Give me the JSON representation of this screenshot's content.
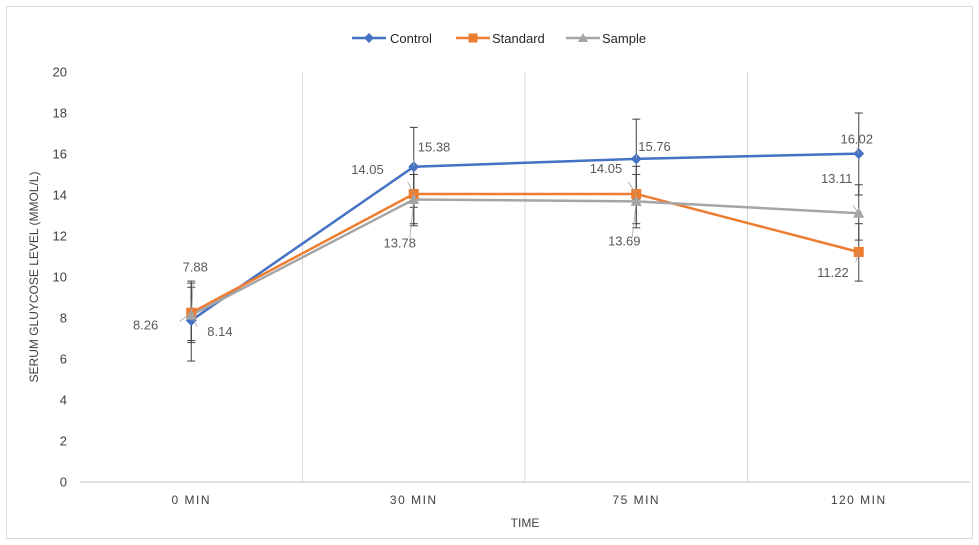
{
  "chart_data": {
    "type": "line",
    "categories": [
      "0 MIN",
      "30 MIN",
      "75 MIN",
      "120 MIN"
    ],
    "xlabel": "TIME",
    "ylabel": "SERUM GLUYCOSE LEVEL (MMOL/L)",
    "ylim": [
      0,
      20
    ],
    "y_ticks": [
      "0",
      "2",
      "4",
      "6",
      "8",
      "10",
      "12",
      "14",
      "16",
      "18",
      "20"
    ],
    "grid": "vertical category separators",
    "legend_position": "top",
    "series": [
      {
        "name": "Control",
        "color": "#4472C4",
        "marker": "diamond",
        "values": [
          7.88,
          15.38,
          15.76,
          16.02
        ],
        "error_low": [
          5.9,
          13.4,
          13.8,
          14.0
        ],
        "error_high": [
          9.8,
          17.3,
          17.7,
          18.0
        ],
        "labels": [
          "7.88",
          "15.38",
          "15.76",
          "16.02"
        ]
      },
      {
        "name": "Standard",
        "color": "#ED7D31",
        "marker": "square",
        "values": [
          8.26,
          14.05,
          14.05,
          11.22
        ],
        "error_low": [
          6.8,
          12.6,
          12.6,
          9.8
        ],
        "error_high": [
          9.7,
          15.4,
          15.4,
          12.6
        ],
        "labels": [
          "8.26",
          "14.05",
          "14.05",
          "11.22"
        ]
      },
      {
        "name": "Sample",
        "color": "#A5A5A5",
        "marker": "triangle",
        "values": [
          8.14,
          13.78,
          13.69,
          13.11
        ],
        "error_low": [
          6.9,
          12.5,
          12.4,
          11.8
        ],
        "error_high": [
          9.5,
          15.0,
          15.0,
          14.5
        ],
        "labels": [
          "8.14",
          "13.78",
          "13.69",
          "13.11"
        ]
      }
    ]
  }
}
